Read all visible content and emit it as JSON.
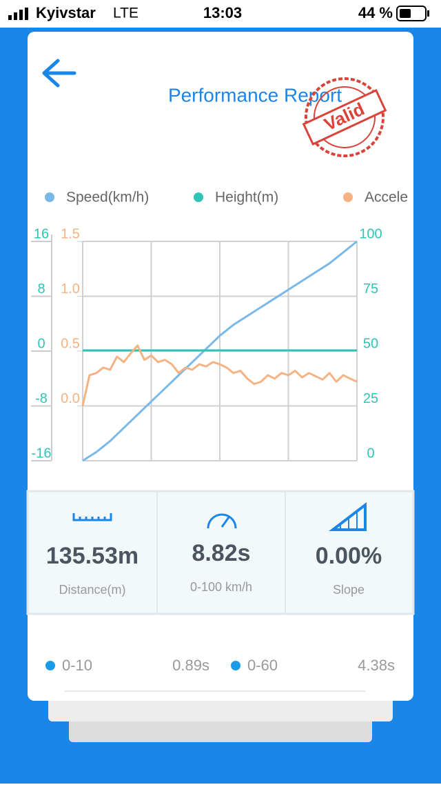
{
  "status_bar": {
    "carrier": "Kyivstar",
    "network": "LTE",
    "time": "13:03",
    "battery": "44 %"
  },
  "header": {
    "title": "Performance Report",
    "stamp": "Valid"
  },
  "chart_data": {
    "type": "line",
    "ylim": [
      -16,
      16
    ],
    "yticks": [
      -16,
      -8,
      0,
      8,
      16
    ],
    "y2lim": [
      0,
      100
    ],
    "y2ticks": [
      0,
      25,
      50,
      75,
      100
    ],
    "y3lim": [
      -0.5,
      1.5
    ],
    "y3ticks": [
      {
        "value": 0,
        "label": "0.0"
      },
      0.5,
      {
        "value": 1,
        "label": "1.0"
      },
      1.5
    ],
    "grid": true,
    "series": [
      {
        "name": "Speed(km/h)",
        "color": "#7ab8e8",
        "axis": "y2",
        "values": [
          0,
          4,
          9,
          15,
          21,
          27,
          33,
          39,
          45,
          51,
          57,
          62,
          66,
          70,
          74,
          78,
          82,
          86,
          90,
          95,
          100
        ]
      },
      {
        "name": "Height(m)",
        "color": "#2ec4b6",
        "values": [
          0.1,
          0.1,
          0.1,
          0.1,
          0.1,
          0.1,
          0.1,
          0.1,
          0.1,
          0.1,
          0.1,
          0.1,
          0.1,
          0.1,
          0.1,
          0.1,
          0.1,
          0.1,
          0.1,
          0.1,
          0.1
        ]
      },
      {
        "name": "Accele",
        "color": "#f5b383",
        "axis": "y3",
        "values": [
          0.0,
          0.28,
          0.3,
          0.35,
          0.33,
          0.45,
          0.4,
          0.48,
          0.55,
          0.42,
          0.46,
          0.4,
          0.42,
          0.38,
          0.3,
          0.35,
          0.33,
          0.38,
          0.36,
          0.4,
          0.38,
          0.35,
          0.3,
          0.32,
          0.25,
          0.2,
          0.22,
          0.28,
          0.25,
          0.3,
          0.28,
          0.32,
          0.26,
          0.3,
          0.27,
          0.24,
          0.3,
          0.22,
          0.28,
          0.25,
          0.22
        ]
      }
    ]
  },
  "stats": [
    {
      "value": "135.53m",
      "label": "Distance(m)"
    },
    {
      "value": "8.82s",
      "label": "0-100 km/h"
    },
    {
      "value": "0.00%",
      "label": "Slope"
    }
  ],
  "splits": [
    {
      "label": "0-10",
      "time": "0.89s"
    },
    {
      "label": "0-60",
      "time": "4.38s"
    }
  ]
}
